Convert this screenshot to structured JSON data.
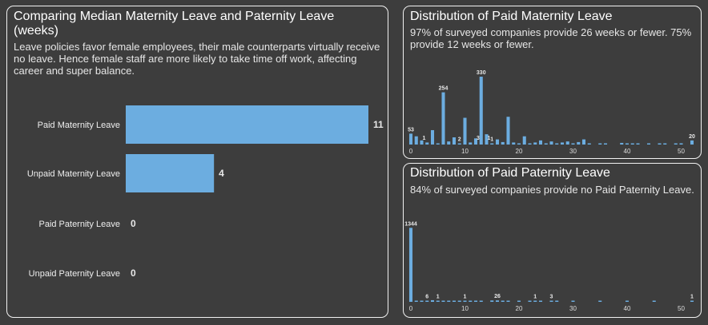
{
  "left_panel": {
    "title": "Comparing Median Maternity Leave and Paternity Leave (weeks)",
    "subtitle": "Leave policies favor female employees, their male counterparts virtually receive no leave. Hence female staff are more likely to take time off work, affecting career and super balance."
  },
  "maternity_panel": {
    "title": "Distribution of Paid Maternity Leave",
    "subtitle": "97% of surveyed companies provide 26 weeks or fewer. 75% provide 12 weeks or fewer."
  },
  "paternity_panel": {
    "title": "Distribution of Paid Paternity Leave",
    "subtitle": "84% of surveyed companies provide no Paid Paternity Leave."
  },
  "colors": {
    "bar": "#6cade0",
    "background": "#3d3d3d",
    "border": "#f2f2f2"
  },
  "chart_data": [
    {
      "type": "bar",
      "orientation": "horizontal",
      "categories": [
        "Paid Maternity Leave",
        "Unpaid Maternity Leave",
        "Paid Paternity Leave",
        "Unpaid Paternity Leave"
      ],
      "values": [
        11,
        4,
        0,
        0
      ],
      "value_labels": [
        "11",
        "4",
        "0",
        "0"
      ],
      "xlim": [
        0,
        11
      ]
    },
    {
      "type": "bar",
      "x_ticks": [
        0,
        10,
        20,
        30,
        40,
        50
      ],
      "xlim": [
        0,
        52
      ],
      "ylim": [
        0,
        400
      ],
      "points": [
        {
          "x": 0,
          "y": 53,
          "label": "53"
        },
        {
          "x": 1,
          "y": 40
        },
        {
          "x": 2,
          "y": 20
        },
        {
          "x": 3,
          "y": 10
        },
        {
          "x": 4,
          "y": 70
        },
        {
          "x": 5,
          "y": 5
        },
        {
          "x": 6,
          "y": 254,
          "label": "254"
        },
        {
          "x": 7,
          "y": 15
        },
        {
          "x": 8,
          "y": 35
        },
        {
          "x": 9,
          "y": 2,
          "label": "2"
        },
        {
          "x": 10,
          "y": 130
        },
        {
          "x": 11,
          "y": 10
        },
        {
          "x": 12,
          "y": 30
        },
        {
          "x": 13,
          "y": 330,
          "label": "330"
        },
        {
          "x": 14,
          "y": 50
        },
        {
          "x": 15,
          "y": 1,
          "label": "1"
        },
        {
          "x": 16,
          "y": 25
        },
        {
          "x": 17,
          "y": 12
        },
        {
          "x": 18,
          "y": 135
        },
        {
          "x": 19,
          "y": 10
        },
        {
          "x": 20,
          "y": 5
        },
        {
          "x": 21,
          "y": 40
        },
        {
          "x": 22,
          "y": 5
        },
        {
          "x": 23,
          "y": 10
        },
        {
          "x": 24,
          "y": 20
        },
        {
          "x": 25,
          "y": 2
        },
        {
          "x": 26,
          "y": 15
        },
        {
          "x": 27,
          "y": 5
        },
        {
          "x": 28,
          "y": 10
        },
        {
          "x": 29,
          "y": 15
        },
        {
          "x": 30,
          "y": 5
        },
        {
          "x": 31,
          "y": 12
        },
        {
          "x": 32,
          "y": 25
        },
        {
          "x": 33,
          "y": 5
        },
        {
          "x": 35,
          "y": 5
        },
        {
          "x": 36,
          "y": 4
        },
        {
          "x": 39,
          "y": 8
        },
        {
          "x": 40,
          "y": 5
        },
        {
          "x": 41,
          "y": 4
        },
        {
          "x": 42,
          "y": 5
        },
        {
          "x": 44,
          "y": 4
        },
        {
          "x": 46,
          "y": 5
        },
        {
          "x": 47,
          "y": 4
        },
        {
          "x": 49,
          "y": 4
        },
        {
          "x": 50,
          "y": 6
        },
        {
          "x": 52,
          "y": 20,
          "label": "20"
        }
      ],
      "extra_labels": [
        {
          "x": 2,
          "text": "1"
        },
        {
          "x": 12,
          "text": "3"
        },
        {
          "x": 14,
          "text": "1"
        }
      ]
    },
    {
      "type": "bar",
      "x_ticks": [
        0,
        10,
        20,
        30,
        40,
        50
      ],
      "xlim": [
        0,
        52
      ],
      "ylim": [
        0,
        1450
      ],
      "points": [
        {
          "x": 0,
          "y": 1344,
          "label": "1344"
        },
        {
          "x": 1,
          "y": 10
        },
        {
          "x": 2,
          "y": 20
        },
        {
          "x": 3,
          "y": 6,
          "label": "6"
        },
        {
          "x": 4,
          "y": 30
        },
        {
          "x": 5,
          "y": 1,
          "label": "1"
        },
        {
          "x": 6,
          "y": 12
        },
        {
          "x": 7,
          "y": 8
        },
        {
          "x": 8,
          "y": 20
        },
        {
          "x": 9,
          "y": 15
        },
        {
          "x": 10,
          "y": 1,
          "label": "1"
        },
        {
          "x": 11,
          "y": 12
        },
        {
          "x": 12,
          "y": 10
        },
        {
          "x": 13,
          "y": 20
        },
        {
          "x": 15,
          "y": 25
        },
        {
          "x": 16,
          "y": 26,
          "label": "26"
        },
        {
          "x": 17,
          "y": 10
        },
        {
          "x": 18,
          "y": 8
        },
        {
          "x": 20,
          "y": 12
        },
        {
          "x": 22,
          "y": 8
        },
        {
          "x": 23,
          "y": 1,
          "label": "1"
        },
        {
          "x": 24,
          "y": 10
        },
        {
          "x": 26,
          "y": 3,
          "label": "3"
        },
        {
          "x": 27,
          "y": 5
        },
        {
          "x": 30,
          "y": 10
        },
        {
          "x": 35,
          "y": 10
        },
        {
          "x": 40,
          "y": 5
        },
        {
          "x": 45,
          "y": 5
        },
        {
          "x": 52,
          "y": 1,
          "label": "1"
        }
      ],
      "extra_labels": []
    }
  ]
}
